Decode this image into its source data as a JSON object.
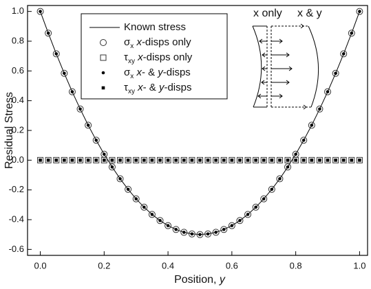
{
  "chart_data": {
    "type": "line",
    "xlabel": "Position, y",
    "ylabel": "Residual Stress",
    "annotations": [
      "x only",
      "x & y"
    ],
    "x": [
      0,
      0.025,
      0.05,
      0.075,
      0.1,
      0.125,
      0.15,
      0.175,
      0.2,
      0.225,
      0.25,
      0.275,
      0.3,
      0.325,
      0.35,
      0.375,
      0.4,
      0.425,
      0.45,
      0.475,
      0.5,
      0.525,
      0.55,
      0.575,
      0.6,
      0.625,
      0.65,
      0.675,
      0.7,
      0.725,
      0.75,
      0.775,
      0.8,
      0.825,
      0.85,
      0.875,
      0.9,
      0.925,
      0.95,
      0.975,
      1
    ],
    "series": [
      {
        "name": "Known stress",
        "marker": "line",
        "color": "#000000",
        "values": [
          1,
          0.854,
          0.715,
          0.584,
          0.46,
          0.344,
          0.235,
          0.134,
          0.04,
          -0.046,
          -0.125,
          -0.196,
          -0.26,
          -0.316,
          -0.365,
          -0.406,
          -0.44,
          -0.466,
          -0.485,
          -0.496,
          -0.5,
          -0.496,
          -0.485,
          -0.466,
          -0.44,
          -0.406,
          -0.365,
          -0.316,
          -0.26,
          -0.196,
          -0.125,
          -0.046,
          0.04,
          0.134,
          0.235,
          0.344,
          0.46,
          0.584,
          0.715,
          0.854,
          1
        ]
      },
      {
        "name": "σx x-disps only",
        "marker": "open-circle",
        "color": "#333333",
        "values": [
          1,
          0.854,
          0.715,
          0.584,
          0.46,
          0.344,
          0.235,
          0.134,
          0.04,
          -0.046,
          -0.125,
          -0.196,
          -0.26,
          -0.316,
          -0.365,
          -0.406,
          -0.44,
          -0.466,
          -0.485,
          -0.496,
          -0.5,
          -0.496,
          -0.485,
          -0.466,
          -0.44,
          -0.406,
          -0.365,
          -0.316,
          -0.26,
          -0.196,
          -0.125,
          -0.046,
          0.04,
          0.134,
          0.235,
          0.344,
          0.46,
          0.584,
          0.715,
          0.854,
          1
        ]
      },
      {
        "name": "τxy x-disps only",
        "marker": "open-square",
        "color": "#333333",
        "values": [
          0,
          0,
          0,
          0,
          0,
          0,
          0,
          0,
          0,
          0,
          0,
          0,
          0,
          0,
          0,
          0,
          0,
          0,
          0,
          0,
          0,
          0,
          0,
          0,
          0,
          0,
          0,
          0,
          0,
          0,
          0,
          0,
          0,
          0,
          0,
          0,
          0,
          0,
          0,
          0,
          0
        ]
      },
      {
        "name": "σx x- & y-disps",
        "marker": "dot",
        "color": "#000000",
        "values": [
          1,
          0.854,
          0.715,
          0.584,
          0.46,
          0.344,
          0.235,
          0.134,
          0.04,
          -0.046,
          -0.125,
          -0.196,
          -0.26,
          -0.316,
          -0.365,
          -0.406,
          -0.44,
          -0.466,
          -0.485,
          -0.496,
          -0.5,
          -0.496,
          -0.485,
          -0.466,
          -0.44,
          -0.406,
          -0.365,
          -0.316,
          -0.26,
          -0.196,
          -0.125,
          -0.046,
          0.04,
          0.134,
          0.235,
          0.344,
          0.46,
          0.584,
          0.715,
          0.854,
          1
        ]
      },
      {
        "name": "τxy x- & y-disps",
        "marker": "small-square",
        "color": "#000000",
        "values": [
          0,
          0,
          0,
          0,
          0,
          0,
          0,
          0,
          0,
          0,
          0,
          0,
          0,
          0,
          0,
          0,
          0,
          0,
          0,
          0,
          0,
          0,
          0,
          0,
          0,
          0,
          0,
          0,
          0,
          0,
          0,
          0,
          0,
          0,
          0,
          0,
          0,
          0,
          0,
          0,
          0
        ]
      }
    ],
    "xlim": [
      -0.04,
      1.025
    ],
    "ylim": [
      -0.64,
      1.04
    ],
    "xticks": [
      {
        "value": 0,
        "label": "0.0"
      },
      {
        "value": 0.2,
        "label": "0.2"
      },
      {
        "value": 0.4,
        "label": "0.4"
      },
      {
        "value": 0.6,
        "label": "0.6"
      },
      {
        "value": 0.8,
        "label": "0.8"
      },
      {
        "value": 1,
        "label": "1.0"
      }
    ],
    "yticks": [
      {
        "value": -0.6,
        "label": "-0.6"
      },
      {
        "value": -0.4,
        "label": "-0.4"
      },
      {
        "value": -0.2,
        "label": "-0.2"
      },
      {
        "value": 0,
        "label": "0.0"
      },
      {
        "value": 0.2,
        "label": "0.2"
      },
      {
        "value": 0.4,
        "label": "0.4"
      },
      {
        "value": 0.6,
        "label": "0.6"
      },
      {
        "value": 0.8,
        "label": "0.8"
      },
      {
        "value": 1,
        "label": "1.0"
      }
    ],
    "grid": false,
    "legend": "upper-left"
  }
}
